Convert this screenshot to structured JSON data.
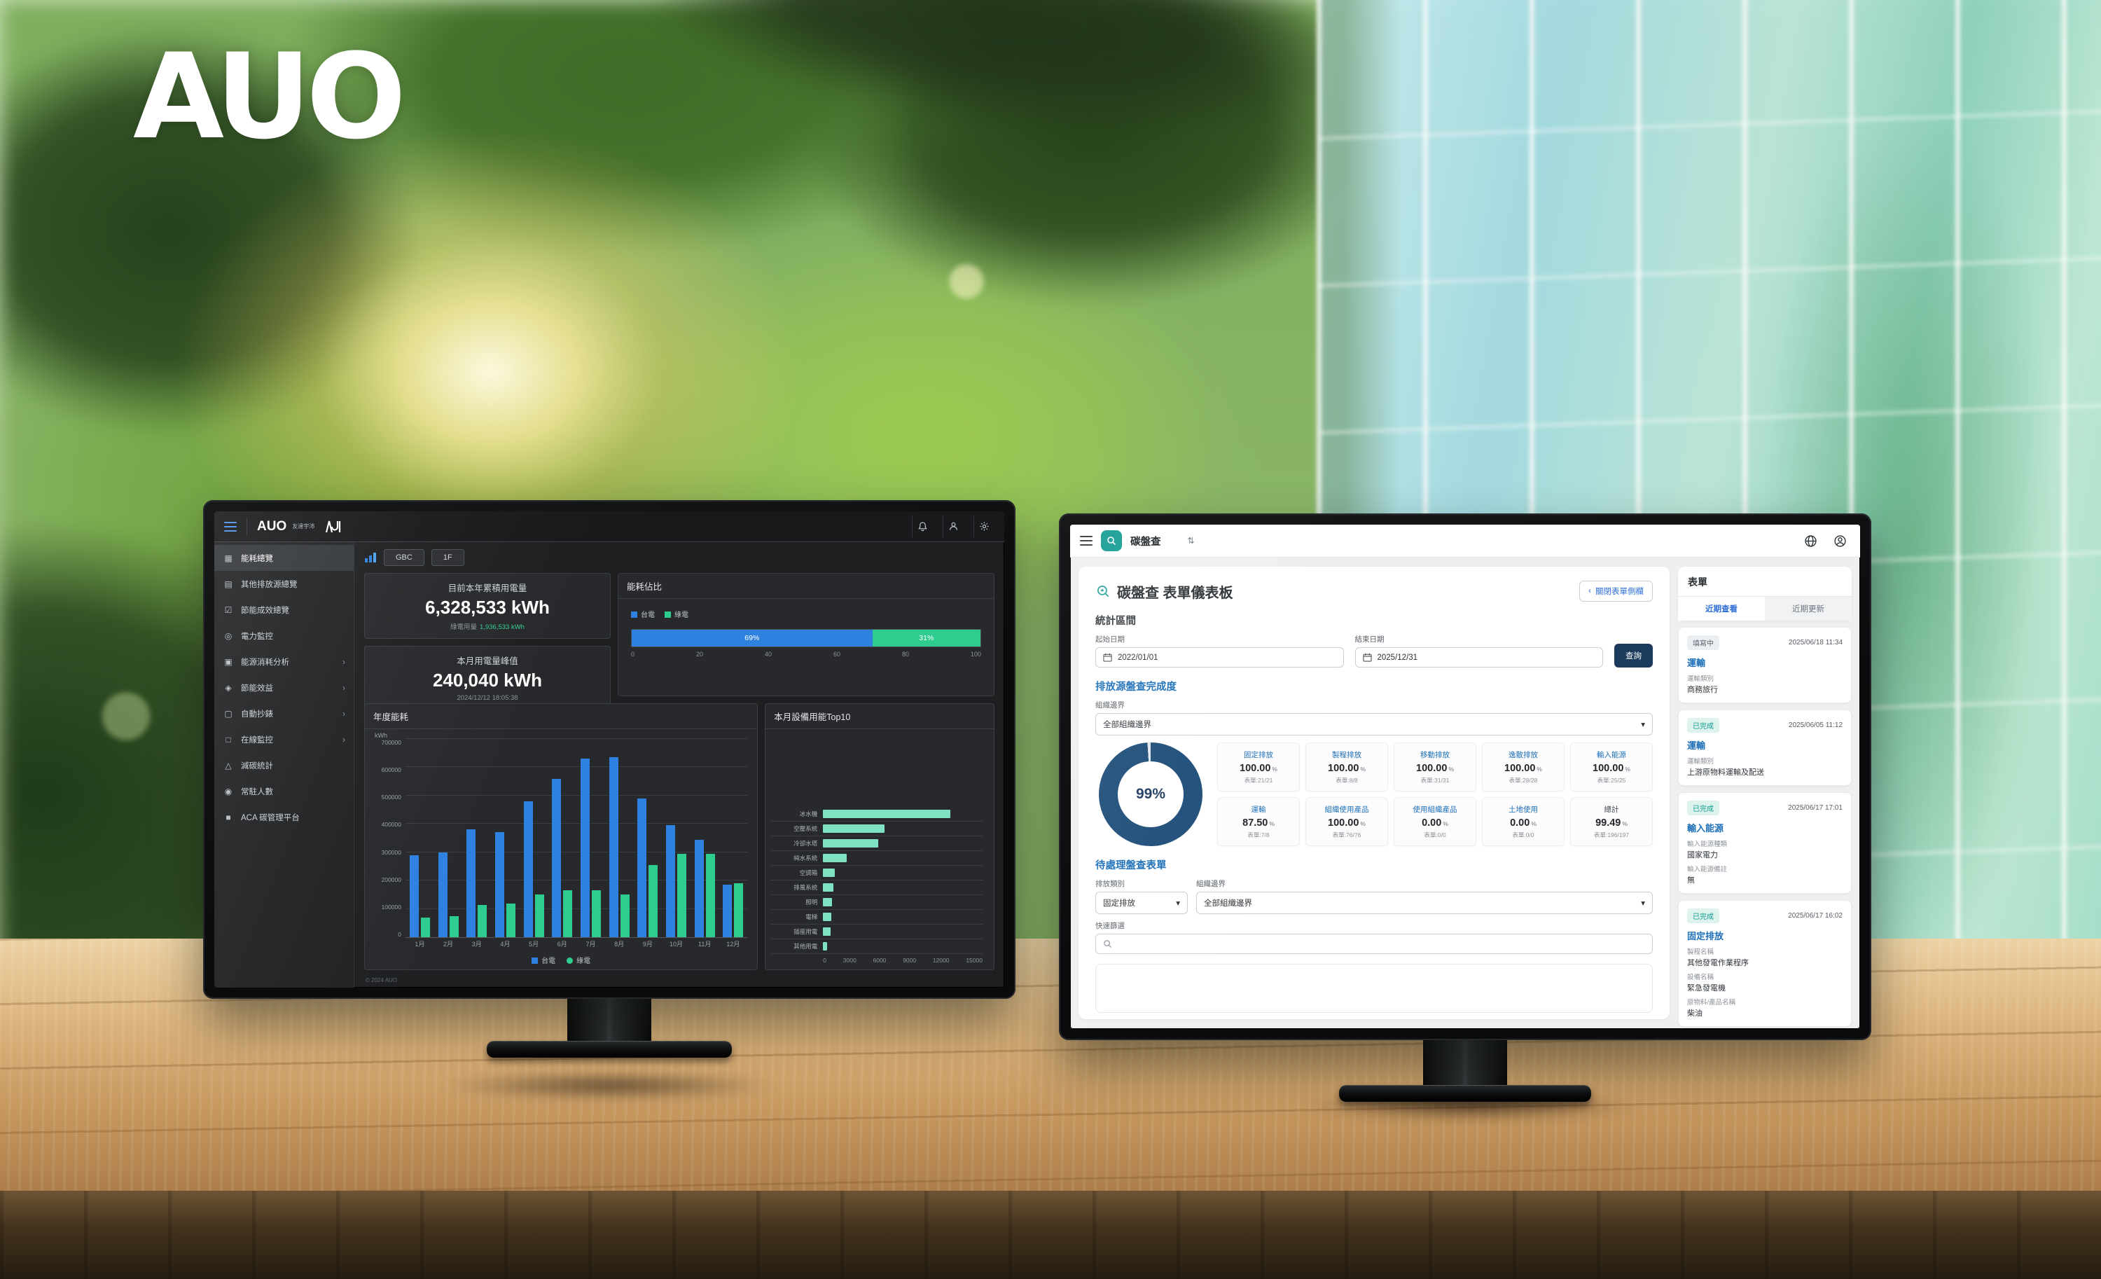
{
  "brand": {
    "logo": "AUO"
  },
  "icons": {
    "overview": "▦",
    "other_sources": "▤",
    "saving": "☑",
    "power": "◎",
    "analysis": "▣",
    "benefit": "◈",
    "meter": "▢",
    "online": "□",
    "carbon": "△",
    "people": "◉",
    "aca": "■",
    "chevron_right": "›",
    "caret_down": "▾",
    "switcher": "⇅",
    "chevron_left": "‹"
  },
  "left_monitor": {
    "topbar": {
      "logo": "AUO",
      "logo_sub": "友達宇沛"
    },
    "sidebar": [
      {
        "label": "能耗總覽"
      },
      {
        "label": "其他排放源總覽"
      },
      {
        "label": "節能成效總覽"
      },
      {
        "label": "電力監控"
      },
      {
        "label": "能源消耗分析"
      },
      {
        "label": "節能效益"
      },
      {
        "label": "自動抄錶"
      },
      {
        "label": "在線監控"
      },
      {
        "label": "減碳統計"
      },
      {
        "label": "常駐人數"
      },
      {
        "label": "ACA 碳管理平台"
      }
    ],
    "tabs": [
      {
        "label": "GBC"
      },
      {
        "label": "1F"
      }
    ],
    "stat_cards": {
      "annual_total": {
        "title": "目前本年累積用電量",
        "value": "6,328,533 kWh",
        "sub_label": "綠電用量",
        "sub_value": "1,936,533 kWh"
      },
      "monthly_peak": {
        "title": "本月用電量峰值",
        "value": "240,040 kWh",
        "timestamp": "2024/12/12 18:05:38"
      }
    },
    "panels": {
      "ratio_title": "能耗佔比",
      "annual_title": "年度能耗",
      "top10_title": "本月設備用能Top10"
    },
    "footer": "© 2024 AUO"
  },
  "right_monitor": {
    "topbar": {
      "app_name": "碳盤查"
    },
    "page_title": "碳盤查 表單儀表板",
    "close_panel_btn": "關閉表單側欄",
    "period": {
      "title": "統計區間",
      "start_label": "起始日期",
      "start_value": "2022/01/01",
      "end_label": "結束日期",
      "end_value": "2025/12/31",
      "search_btn": "查詢"
    },
    "completion": {
      "title": "排放源盤查完成度",
      "org_label": "組織邊界",
      "org_value": "全部組織邊界",
      "cards": [
        {
          "label": "固定排放",
          "value": "100.00",
          "unit": "%",
          "sub": "表單:21/21"
        },
        {
          "label": "製程排放",
          "value": "100.00",
          "unit": "%",
          "sub": "表單:8/8"
        },
        {
          "label": "移動排放",
          "value": "100.00",
          "unit": "%",
          "sub": "表單:31/31"
        },
        {
          "label": "逸散排放",
          "value": "100.00",
          "unit": "%",
          "sub": "表單:28/28"
        },
        {
          "label": "輸入能源",
          "value": "100.00",
          "unit": "%",
          "sub": "表單:25/25"
        },
        {
          "label": "運輸",
          "value": "87.50",
          "unit": "%",
          "sub": "表單:7/8"
        },
        {
          "label": "組織使用產品",
          "value": "100.00",
          "unit": "%",
          "sub": "表單:76/76"
        },
        {
          "label": "使用組織產品",
          "value": "0.00",
          "unit": "%",
          "sub": "表單:0/0"
        },
        {
          "label": "土地使用",
          "value": "0.00",
          "unit": "%",
          "sub": "表單:0/0"
        },
        {
          "label": "總計",
          "value": "99.49",
          "unit": "%",
          "sub": "表單:196/197"
        }
      ]
    },
    "pending": {
      "title": "待處理盤查表單",
      "category_label": "排放類別",
      "category_value": "固定排放",
      "org_label": "組織邊界",
      "org_value": "全部組織邊界",
      "filter_label": "快速篩選"
    },
    "panel": {
      "title": "表單",
      "tabs": [
        {
          "label": "近期查看"
        },
        {
          "label": "近期更新"
        }
      ],
      "cards": [
        {
          "status": "填寫中",
          "time": "2025/06/18 11:34",
          "title": "運輸",
          "f1_label": "運輸類別",
          "f1_value": "商務旅行"
        },
        {
          "status": "已完成",
          "time": "2025/06/05 11:12",
          "title": "運輸",
          "f1_label": "運輸類別",
          "f1_value": "上游原物料運輸及配送"
        },
        {
          "status": "已完成",
          "time": "2025/06/17 17:01",
          "title": "輸入能源",
          "f1_label": "輸入能源種類",
          "f1_value": "國家電力",
          "f2_label": "輸入能源備註",
          "f2_value": "無"
        },
        {
          "status": "已完成",
          "time": "2025/06/17 16:02",
          "title": "固定排放",
          "f1_label": "製程名稱",
          "f1_value": "其他發電作業程序",
          "f2_label": "設備名稱",
          "f2_value": "緊急發電機",
          "f3_label": "原物料/產品名稱",
          "f3_value": "柴油"
        }
      ]
    }
  },
  "chart_data": [
    {
      "id": "annual_energy",
      "type": "bar",
      "title": "年度能耗",
      "ylabel": "kWh",
      "categories": [
        "1月",
        "2月",
        "3月",
        "4月",
        "5月",
        "6月",
        "7月",
        "8月",
        "9月",
        "10月",
        "11月",
        "12月"
      ],
      "series": [
        {
          "name": "台電",
          "color": "#2f81e0",
          "shape": "square",
          "values": [
            290000,
            300000,
            380000,
            370000,
            480000,
            560000,
            630000,
            635000,
            490000,
            395000,
            345000,
            185000
          ]
        },
        {
          "name": "綠電",
          "color": "#2ecc8f",
          "shape": "circle",
          "values": [
            70000,
            75000,
            115000,
            120000,
            150000,
            165000,
            165000,
            150000,
            255000,
            295000,
            295000,
            190000
          ]
        }
      ],
      "ylim": [
        0,
        700000
      ],
      "ytick_step": 100000,
      "grid": true,
      "legend_position": "bottom"
    },
    {
      "id": "top10_devices",
      "type": "bar",
      "orientation": "horizontal",
      "title": "本月設備用能Top10",
      "color": "#7fe3c3",
      "categories": [
        "冰水機",
        "空壓系統",
        "冷卻水塔",
        "純水系統",
        "空調箱",
        "排風系統",
        "照明",
        "電梯",
        "插座用電",
        "其他用電"
      ],
      "values": [
        12000,
        5800,
        5200,
        2200,
        1100,
        1000,
        850,
        800,
        700,
        400
      ],
      "xlim": [
        0,
        15000
      ],
      "xticks": [
        0,
        3000,
        6000,
        9000,
        12000,
        15000
      ]
    },
    {
      "id": "energy_ratio",
      "type": "stacked_bar",
      "title": "能耗佔比",
      "xlim": [
        0,
        100
      ],
      "xticks": [
        0,
        20,
        40,
        60,
        80,
        100
      ],
      "segments": [
        {
          "name": "台電",
          "value": 69,
          "color": "#2f81e0"
        },
        {
          "name": "綠電",
          "value": 31,
          "color": "#2ecc8f"
        }
      ]
    },
    {
      "id": "completion_donut",
      "type": "donut",
      "value": 99,
      "label": "99%",
      "color": "#1f4e79",
      "track": "#dfe5ec"
    }
  ]
}
